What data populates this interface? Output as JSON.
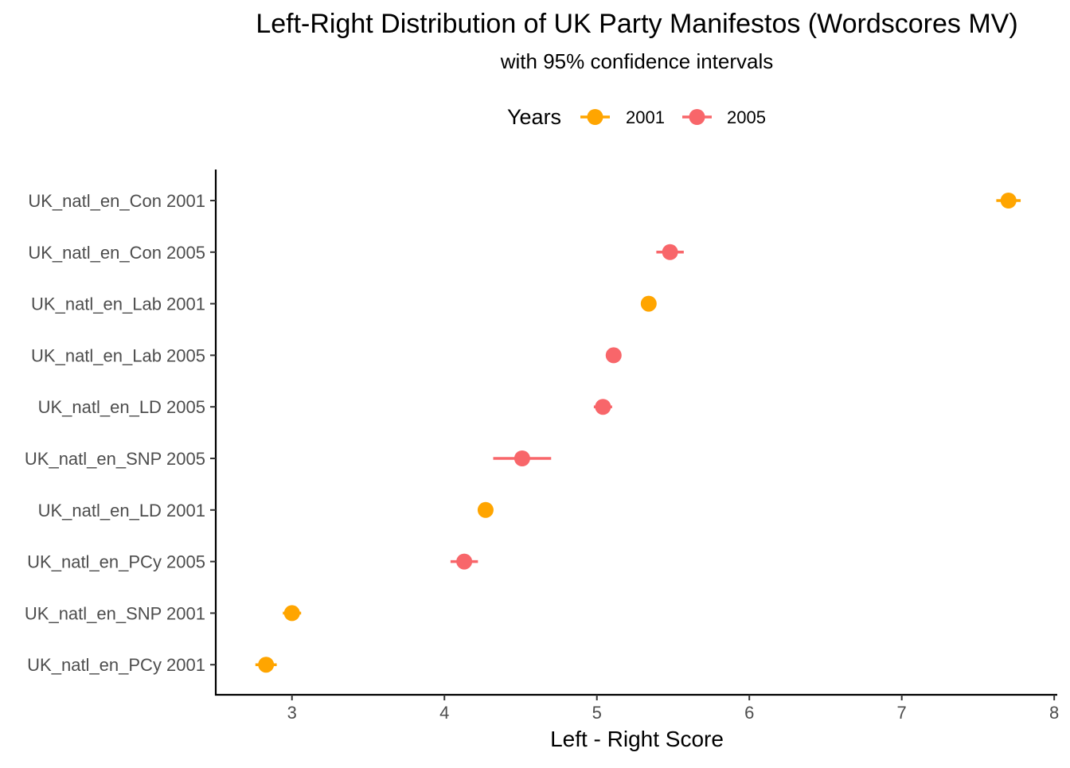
{
  "chart_data": {
    "type": "scatter",
    "title": "Left-Right Distribution of UK Party Manifestos (Wordscores MV)",
    "subtitle": "with 95% confidence intervals",
    "xlabel": "Left - Right Score",
    "ylabel": "",
    "xlim": [
      2.5,
      8.02
    ],
    "x_ticks": [
      3,
      4,
      5,
      6,
      7,
      8
    ],
    "x_tick_labels": [
      "3",
      "4",
      "5",
      "6",
      "7",
      "8"
    ],
    "grid": false,
    "legend": {
      "title": "Years",
      "position": "top",
      "entries": [
        {
          "label": "2001",
          "color": "#FFA500"
        },
        {
          "label": "2005",
          "color": "#F8666A"
        }
      ]
    },
    "points": [
      {
        "label": "UK_natl_en_Con 2001",
        "year": "2001",
        "value": 7.7,
        "lower": 7.62,
        "upper": 7.78
      },
      {
        "label": "UK_natl_en_Con 2005",
        "year": "2005",
        "value": 5.48,
        "lower": 5.39,
        "upper": 5.57
      },
      {
        "label": "UK_natl_en_Lab 2001",
        "year": "2001",
        "value": 5.34,
        "lower": 5.32,
        "upper": 5.36
      },
      {
        "label": "UK_natl_en_Lab 2005",
        "year": "2005",
        "value": 5.11,
        "lower": 5.09,
        "upper": 5.13
      },
      {
        "label": "UK_natl_en_LD 2005",
        "year": "2005",
        "value": 5.04,
        "lower": 4.98,
        "upper": 5.1
      },
      {
        "label": "UK_natl_en_SNP 2005",
        "year": "2005",
        "value": 4.51,
        "lower": 4.32,
        "upper": 4.7
      },
      {
        "label": "UK_natl_en_LD 2001",
        "year": "2001",
        "value": 4.27,
        "lower": 4.25,
        "upper": 4.29
      },
      {
        "label": "UK_natl_en_PCy 2005",
        "year": "2005",
        "value": 4.13,
        "lower": 4.04,
        "upper": 4.22
      },
      {
        "label": "UK_natl_en_SNP 2001",
        "year": "2001",
        "value": 3.0,
        "lower": 2.94,
        "upper": 3.06
      },
      {
        "label": "UK_natl_en_PCy 2001",
        "year": "2001",
        "value": 2.83,
        "lower": 2.76,
        "upper": 2.9
      }
    ]
  }
}
